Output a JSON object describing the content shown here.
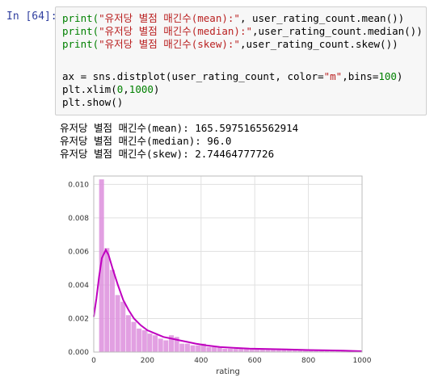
{
  "cell": {
    "prompt": "In [64]:",
    "code": {
      "line1": {
        "fn": "print(",
        "str": "\"유저당 별점 매긴수(mean):\"",
        "rest": ", user_rating_count.mean())"
      },
      "line2": {
        "fn": "print(",
        "str": "\"유저당 별점 매긴수(median):\"",
        "rest": ",user_rating_count.median())"
      },
      "line3": {
        "fn": "print(",
        "str": "\"유저당 별점 매긴수(skew):\"",
        "rest": ",user_rating_count.skew())"
      },
      "line5": {
        "a": "ax = sns.distplot(user_rating_count, color=",
        "str": "\"m\"",
        "b": ",bins=",
        "num": "100",
        "c": ")"
      },
      "line6": {
        "a": "plt.xlim(",
        "n1": "0",
        "comma": ",",
        "n2": "1000",
        "c": ")"
      },
      "line7": "plt.show()"
    }
  },
  "output": {
    "lines": [
      "유저당 별점 매긴수(mean): 165.5975165562914",
      "유저당 별점 매긴수(median): 96.0",
      "유저당 별점 매긴수(skew): 2.74464777726"
    ]
  },
  "chart_data": {
    "type": "bar",
    "xlabel": "rating",
    "ylabel": "",
    "xlim": [
      0,
      1000
    ],
    "ylim": [
      0,
      0.0105
    ],
    "grid": true,
    "xticks": [
      0,
      200,
      400,
      600,
      800,
      1000
    ],
    "yticks": [
      0.0,
      0.002,
      0.004,
      0.006,
      0.008,
      0.01
    ],
    "ytick_labels": [
      "0.000",
      "0.002",
      "0.004",
      "0.006",
      "0.008",
      "0.010"
    ],
    "bar_color": "#dd8fdd",
    "line_color": "#bf00bf",
    "bins": [
      {
        "x0": 20,
        "x1": 40,
        "v": 0.0103
      },
      {
        "x0": 40,
        "x1": 60,
        "v": 0.0062
      },
      {
        "x0": 60,
        "x1": 80,
        "v": 0.0049
      },
      {
        "x0": 80,
        "x1": 100,
        "v": 0.0034
      },
      {
        "x0": 100,
        "x1": 120,
        "v": 0.003
      },
      {
        "x0": 120,
        "x1": 140,
        "v": 0.0022
      },
      {
        "x0": 140,
        "x1": 160,
        "v": 0.0018
      },
      {
        "x0": 160,
        "x1": 180,
        "v": 0.0014
      },
      {
        "x0": 180,
        "x1": 200,
        "v": 0.0013
      },
      {
        "x0": 200,
        "x1": 220,
        "v": 0.0011
      },
      {
        "x0": 220,
        "x1": 240,
        "v": 0.001
      },
      {
        "x0": 240,
        "x1": 260,
        "v": 0.0008
      },
      {
        "x0": 260,
        "x1": 280,
        "v": 0.0007
      },
      {
        "x0": 280,
        "x1": 300,
        "v": 0.001
      },
      {
        "x0": 300,
        "x1": 320,
        "v": 0.0009
      },
      {
        "x0": 320,
        "x1": 340,
        "v": 0.0005
      },
      {
        "x0": 340,
        "x1": 360,
        "v": 0.0005
      },
      {
        "x0": 360,
        "x1": 380,
        "v": 0.0004
      },
      {
        "x0": 380,
        "x1": 400,
        "v": 0.0004
      },
      {
        "x0": 400,
        "x1": 420,
        "v": 0.0005
      },
      {
        "x0": 420,
        "x1": 440,
        "v": 0.0003
      },
      {
        "x0": 440,
        "x1": 460,
        "v": 0.0003
      },
      {
        "x0": 460,
        "x1": 480,
        "v": 0.0003
      },
      {
        "x0": 480,
        "x1": 500,
        "v": 0.0002
      },
      {
        "x0": 500,
        "x1": 520,
        "v": 0.0002
      },
      {
        "x0": 520,
        "x1": 540,
        "v": 0.0002
      },
      {
        "x0": 540,
        "x1": 560,
        "v": 0.0002
      },
      {
        "x0": 560,
        "x1": 580,
        "v": 0.0002
      },
      {
        "x0": 580,
        "x1": 600,
        "v": 0.0002
      },
      {
        "x0": 600,
        "x1": 620,
        "v": 0.0002
      },
      {
        "x0": 620,
        "x1": 640,
        "v": 0.0002
      },
      {
        "x0": 640,
        "x1": 660,
        "v": 0.0002
      },
      {
        "x0": 660,
        "x1": 680,
        "v": 0.0002
      },
      {
        "x0": 680,
        "x1": 700,
        "v": 0.0002
      },
      {
        "x0": 700,
        "x1": 720,
        "v": 0.00015
      },
      {
        "x0": 720,
        "x1": 740,
        "v": 0.00015
      },
      {
        "x0": 740,
        "x1": 760,
        "v": 0.00015
      },
      {
        "x0": 760,
        "x1": 780,
        "v": 0.00015
      },
      {
        "x0": 780,
        "x1": 800,
        "v": 0.00012
      },
      {
        "x0": 800,
        "x1": 820,
        "v": 0.0001
      },
      {
        "x0": 820,
        "x1": 840,
        "v": 0.0001
      },
      {
        "x0": 840,
        "x1": 860,
        "v": 0.0001
      },
      {
        "x0": 860,
        "x1": 880,
        "v": 0.0001
      },
      {
        "x0": 880,
        "x1": 900,
        "v": 0.0001
      },
      {
        "x0": 900,
        "x1": 920,
        "v": 8e-05
      },
      {
        "x0": 920,
        "x1": 940,
        "v": 8e-05
      },
      {
        "x0": 940,
        "x1": 960,
        "v": 7e-05
      },
      {
        "x0": 960,
        "x1": 980,
        "v": 6e-05
      },
      {
        "x0": 980,
        "x1": 1000,
        "v": 5e-05
      }
    ],
    "kde": [
      [
        0,
        0.0021
      ],
      [
        10,
        0.0032
      ],
      [
        20,
        0.0045
      ],
      [
        30,
        0.0056
      ],
      [
        45,
        0.0061
      ],
      [
        55,
        0.0058
      ],
      [
        70,
        0.005
      ],
      [
        90,
        0.004
      ],
      [
        110,
        0.0031
      ],
      [
        130,
        0.0025
      ],
      [
        150,
        0.002
      ],
      [
        175,
        0.0016
      ],
      [
        200,
        0.0013
      ],
      [
        230,
        0.0011
      ],
      [
        260,
        0.0009
      ],
      [
        290,
        0.0008
      ],
      [
        320,
        0.0007
      ],
      [
        350,
        0.0006
      ],
      [
        380,
        0.0005
      ],
      [
        420,
        0.0004
      ],
      [
        470,
        0.0003
      ],
      [
        520,
        0.00025
      ],
      [
        580,
        0.0002
      ],
      [
        650,
        0.00018
      ],
      [
        720,
        0.00016
      ],
      [
        800,
        0.00012
      ],
      [
        870,
        0.0001
      ],
      [
        930,
        8e-05
      ],
      [
        1000,
        5e-05
      ]
    ]
  }
}
